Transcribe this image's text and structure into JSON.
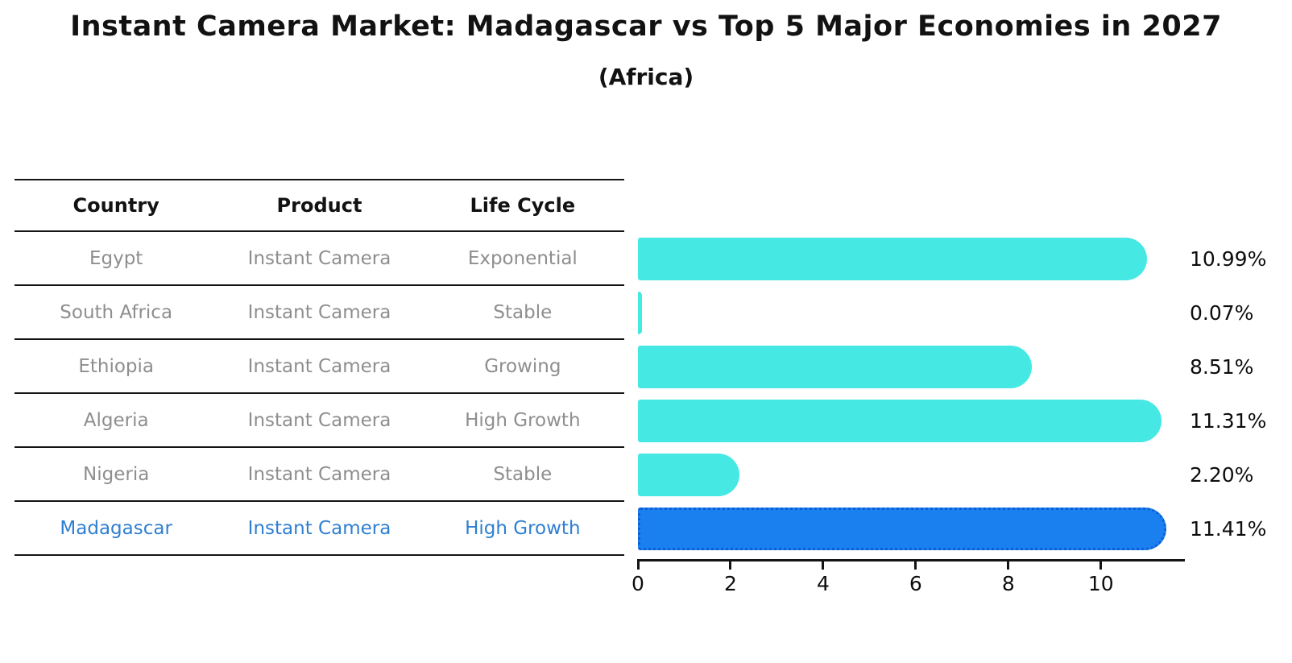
{
  "title": "Instant Camera Market: Madagascar vs Top 5 Major Economies in 2027",
  "subtitle": "(Africa)",
  "table": {
    "headers": [
      "Country",
      "Product",
      "Life Cycle"
    ],
    "rows": [
      {
        "country": "Egypt",
        "product": "Instant Camera",
        "life_cycle": "Exponential",
        "highlight": false
      },
      {
        "country": "South Africa",
        "product": "Instant Camera",
        "life_cycle": "Stable",
        "highlight": false
      },
      {
        "country": "Ethiopia",
        "product": "Instant Camera",
        "life_cycle": "Growing",
        "highlight": false
      },
      {
        "country": "Algeria",
        "product": "Instant Camera",
        "life_cycle": "High Growth",
        "highlight": false
      },
      {
        "country": "Nigeria",
        "product": "Instant Camera",
        "life_cycle": "Stable",
        "highlight": false
      },
      {
        "country": "Madagascar",
        "product": "Instant Camera",
        "life_cycle": "High Growth",
        "highlight": true
      }
    ]
  },
  "chart_data": {
    "type": "bar",
    "orientation": "horizontal",
    "categories": [
      "Egypt",
      "South Africa",
      "Ethiopia",
      "Algeria",
      "Nigeria",
      "Madagascar"
    ],
    "values": [
      10.99,
      0.07,
      8.51,
      11.31,
      2.2,
      11.41
    ],
    "value_labels": [
      "10.99%",
      "0.07%",
      "8.51%",
      "11.31%",
      "2.20%",
      "11.41%"
    ],
    "x_ticks": [
      "0",
      "2",
      "4",
      "6",
      "8",
      "10"
    ],
    "xlim": [
      0,
      11.83
    ],
    "grid": "off",
    "legend": "none",
    "highlight_index": 5
  },
  "colors": {
    "bar": "#46E8E4",
    "highlight_bar": "#1A80F0",
    "highlight_border": "#0E5FD6",
    "highlight_text": "#2E7FD1",
    "table_text": "#8E8E8E",
    "header_text": "#121212",
    "line": "#141414",
    "label_text": "#0D0D0D"
  }
}
